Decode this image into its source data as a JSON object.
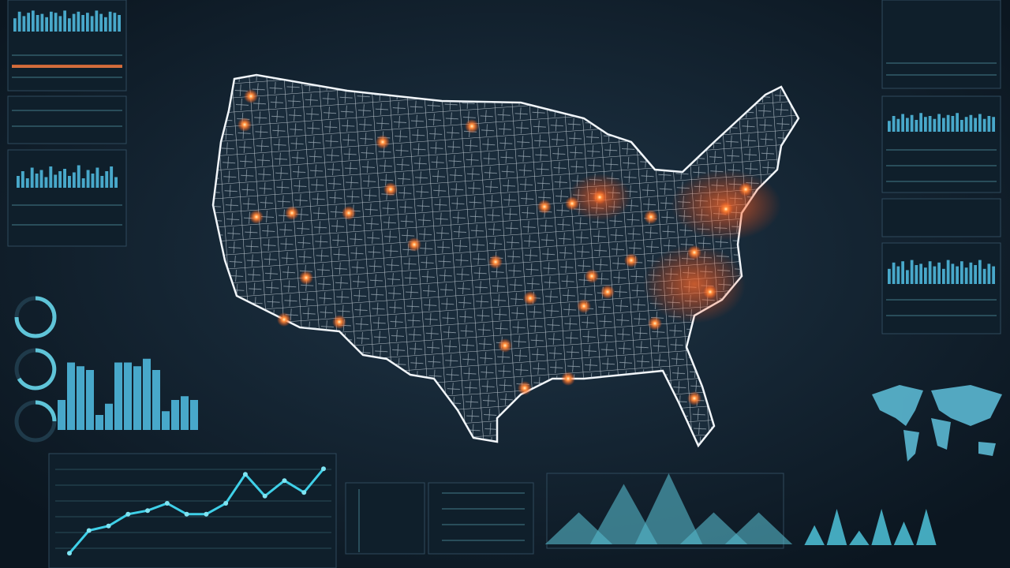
{
  "chart_data": [
    {
      "type": "bar",
      "ylim": [
        0,
        100
      ],
      "values": [
        40,
        90,
        85,
        80,
        20,
        35,
        90,
        90,
        85,
        95,
        80,
        25,
        40,
        45,
        40
      ]
    },
    {
      "type": "line",
      "ylim": [
        0,
        100
      ],
      "values": [
        5,
        30,
        35,
        48,
        52,
        60,
        48,
        48,
        60,
        92,
        68,
        85,
        72,
        98
      ]
    },
    {
      "type": "peak",
      "ylim": [
        0,
        100
      ],
      "values": [
        45,
        85,
        100,
        45,
        45
      ]
    },
    {
      "type": "spike",
      "ylim": [
        0,
        100
      ],
      "values": [
        55,
        100,
        40,
        100,
        65,
        100
      ]
    },
    {
      "type": "minibar",
      "ylim": [
        0,
        100
      ],
      "values": [
        60,
        90,
        70,
        85,
        95,
        75,
        80,
        65,
        90,
        85,
        70,
        95,
        60,
        80,
        90,
        75,
        85,
        70,
        95,
        80,
        65,
        90,
        85,
        75
      ]
    },
    {
      "type": "minibar",
      "ylim": [
        0,
        100
      ],
      "values": [
        50,
        70,
        40,
        85,
        60,
        75,
        45,
        90,
        55,
        70,
        80,
        50,
        65,
        95,
        40,
        75,
        60,
        85,
        50,
        70,
        90,
        45
      ]
    },
    {
      "type": "minibar",
      "ylim": [
        0,
        100
      ],
      "values": [
        55,
        80,
        65,
        90,
        70,
        85,
        60,
        95,
        75,
        80,
        65,
        90,
        70,
        85,
        80,
        95,
        60,
        75,
        85,
        70,
        90,
        65,
        80,
        75
      ]
    },
    {
      "type": "minibar",
      "ylim": [
        0,
        100
      ],
      "values": [
        60,
        85,
        70,
        90,
        55,
        95,
        75,
        80,
        65,
        90,
        70,
        85,
        60,
        95,
        80,
        70,
        90,
        65,
        85,
        75,
        95,
        60,
        80,
        70
      ]
    }
  ]
}
